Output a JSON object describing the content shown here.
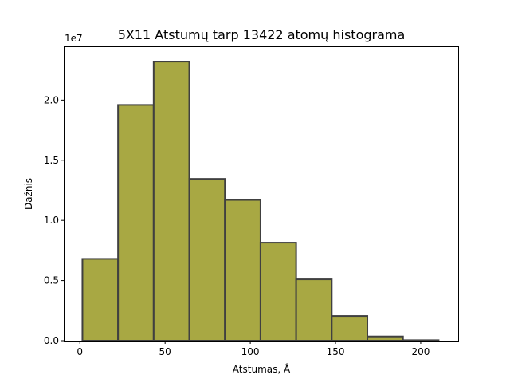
{
  "chart_data": {
    "type": "bar",
    "title": "5X11 Atstumų tarp 13422 atomų histograma",
    "xlabel": "Atstumas, Å",
    "ylabel": "Dažnis",
    "y_multiplier": "1e7",
    "xlim": [
      -9,
      222
    ],
    "ylim": [
      0,
      2.44
    ],
    "x_ticks": [
      0,
      50,
      100,
      150,
      200
    ],
    "x_tick_labels": [
      "0",
      "50",
      "100",
      "150",
      "200"
    ],
    "y_ticks": [
      0.0,
      0.5,
      1.0,
      1.5,
      2.0
    ],
    "y_tick_labels": [
      "0.0",
      "0.5",
      "1.0",
      "1.5",
      "2.0"
    ],
    "bins": [
      {
        "start": 1.5,
        "end": 22.4,
        "value": 0.68
      },
      {
        "start": 22.4,
        "end": 43.3,
        "value": 1.96
      },
      {
        "start": 43.3,
        "end": 64.2,
        "value": 2.32
      },
      {
        "start": 64.2,
        "end": 85.1,
        "value": 1.345
      },
      {
        "start": 85.1,
        "end": 106.0,
        "value": 1.17
      },
      {
        "start": 106.0,
        "end": 126.9,
        "value": 0.815
      },
      {
        "start": 126.9,
        "end": 147.8,
        "value": 0.51
      },
      {
        "start": 147.8,
        "end": 168.7,
        "value": 0.205
      },
      {
        "start": 168.7,
        "end": 189.6,
        "value": 0.035
      },
      {
        "start": 189.6,
        "end": 210.5,
        "value": 0.004
      }
    ],
    "bar_color": "#a8a843",
    "edge_color": "#404040",
    "grid": false,
    "legend": "none"
  }
}
